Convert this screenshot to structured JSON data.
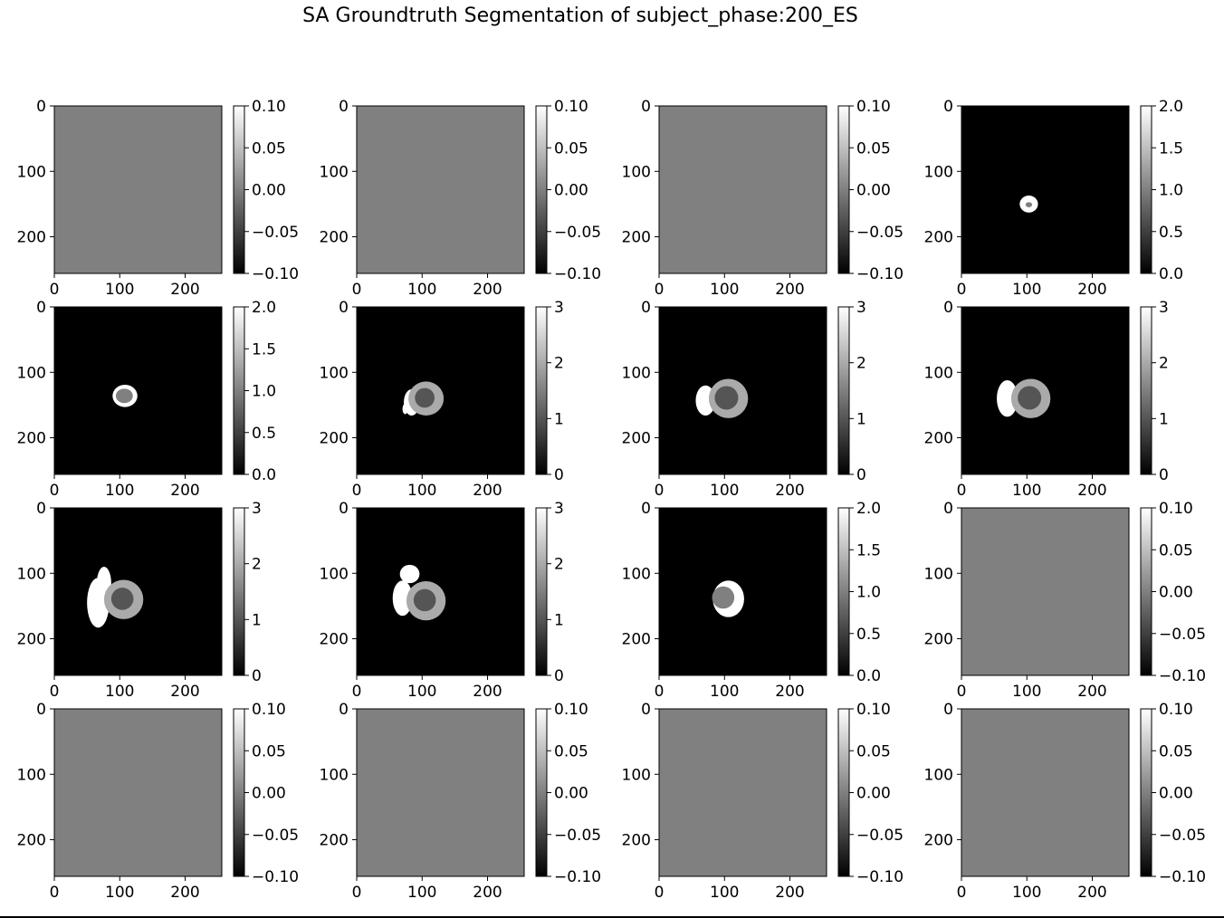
{
  "title": "SA Groundtruth Segmentation of subject_phase:200_ES",
  "colors": {
    "background": "#ffffff",
    "colormap": "gray",
    "axis": "#000000"
  },
  "chart_data": [
    {
      "type": "heatmap",
      "x_ticks": [
        0,
        100,
        200
      ],
      "y_ticks": [
        0,
        100,
        200
      ],
      "xlim": [
        0,
        256
      ],
      "ylim": [
        256,
        0
      ],
      "colorbar": {
        "vmin": -0.1,
        "vmax": 0.1,
        "ticks": [
          "0.10",
          "0.05",
          "0.00",
          "−0.05",
          "−0.10"
        ]
      },
      "value": 0,
      "regions": []
    },
    {
      "type": "heatmap",
      "x_ticks": [
        0,
        100,
        200
      ],
      "y_ticks": [
        0,
        100,
        200
      ],
      "xlim": [
        0,
        256
      ],
      "ylim": [
        256,
        0
      ],
      "colorbar": {
        "vmin": -0.1,
        "vmax": 0.1,
        "ticks": [
          "0.10",
          "0.05",
          "0.00",
          "−0.05",
          "−0.10"
        ]
      },
      "value": 0,
      "regions": []
    },
    {
      "type": "heatmap",
      "x_ticks": [
        0,
        100,
        200
      ],
      "y_ticks": [
        0,
        100,
        200
      ],
      "xlim": [
        0,
        256
      ],
      "ylim": [
        256,
        0
      ],
      "colorbar": {
        "vmin": -0.1,
        "vmax": 0.1,
        "ticks": [
          "0.10",
          "0.05",
          "0.00",
          "−0.05",
          "−0.10"
        ]
      },
      "value": 0,
      "regions": []
    },
    {
      "type": "heatmap",
      "x_ticks": [
        0,
        100,
        200
      ],
      "y_ticks": [
        0,
        100,
        200
      ],
      "xlim": [
        0,
        256
      ],
      "ylim": [
        256,
        0
      ],
      "colorbar": {
        "vmin": 0,
        "vmax": 2,
        "ticks": [
          "2.0",
          "1.5",
          "1.0",
          "0.5",
          "0.0"
        ]
      },
      "value": 0,
      "regions": [
        {
          "shape": "ellipse",
          "cx": 103,
          "cy": 150,
          "rx": 14,
          "ry": 13,
          "value": 2
        },
        {
          "shape": "ellipse",
          "cx": 103,
          "cy": 151,
          "rx": 5,
          "ry": 4,
          "value": 1
        }
      ]
    },
    {
      "type": "heatmap",
      "x_ticks": [
        0,
        100,
        200
      ],
      "y_ticks": [
        0,
        100,
        200
      ],
      "xlim": [
        0,
        256
      ],
      "ylim": [
        256,
        0
      ],
      "colorbar": {
        "vmin": 0,
        "vmax": 2,
        "ticks": [
          "2.0",
          "1.5",
          "1.0",
          "0.5",
          "0.0"
        ]
      },
      "value": 0,
      "regions": [
        {
          "shape": "ellipse",
          "cx": 108,
          "cy": 136,
          "rx": 19,
          "ry": 17,
          "value": 2
        },
        {
          "shape": "ellipse",
          "cx": 107,
          "cy": 136,
          "rx": 13,
          "ry": 11,
          "value": 1
        }
      ]
    },
    {
      "type": "heatmap",
      "x_ticks": [
        0,
        100,
        200
      ],
      "y_ticks": [
        0,
        100,
        200
      ],
      "xlim": [
        0,
        256
      ],
      "ylim": [
        256,
        0
      ],
      "colorbar": {
        "vmin": 0,
        "vmax": 3,
        "ticks": [
          "3",
          "2",
          "1",
          "0"
        ]
      },
      "value": 0,
      "regions": [
        {
          "shape": "ellipse",
          "cx": 84,
          "cy": 146,
          "rx": 12,
          "ry": 20,
          "value": 3
        },
        {
          "shape": "ellipse",
          "cx": 74,
          "cy": 156,
          "rx": 4,
          "ry": 8,
          "value": 3
        },
        {
          "shape": "ellipse",
          "cx": 106,
          "cy": 140,
          "rx": 27,
          "ry": 26,
          "value": 2
        },
        {
          "shape": "ellipse",
          "cx": 104,
          "cy": 139,
          "rx": 15,
          "ry": 15,
          "value": 1
        }
      ]
    },
    {
      "type": "heatmap",
      "x_ticks": [
        0,
        100,
        200
      ],
      "y_ticks": [
        0,
        100,
        200
      ],
      "xlim": [
        0,
        256
      ],
      "ylim": [
        256,
        0
      ],
      "colorbar": {
        "vmin": 0,
        "vmax": 3,
        "ticks": [
          "3",
          "2",
          "1",
          "0"
        ]
      },
      "value": 0,
      "regions": [
        {
          "shape": "ellipse",
          "cx": 71,
          "cy": 143,
          "rx": 15,
          "ry": 23,
          "value": 3
        },
        {
          "shape": "ellipse",
          "cx": 106,
          "cy": 140,
          "rx": 30,
          "ry": 30,
          "value": 2
        },
        {
          "shape": "ellipse",
          "cx": 103,
          "cy": 139,
          "rx": 18,
          "ry": 18,
          "value": 1
        }
      ]
    },
    {
      "type": "heatmap",
      "x_ticks": [
        0,
        100,
        200
      ],
      "y_ticks": [
        0,
        100,
        200
      ],
      "xlim": [
        0,
        256
      ],
      "ylim": [
        256,
        0
      ],
      "colorbar": {
        "vmin": 0,
        "vmax": 3,
        "ticks": [
          "3",
          "2",
          "1",
          "0"
        ]
      },
      "value": 0,
      "regions": [
        {
          "shape": "ellipse",
          "cx": 70,
          "cy": 140,
          "rx": 16,
          "ry": 28,
          "value": 3
        },
        {
          "shape": "ellipse",
          "cx": 106,
          "cy": 140,
          "rx": 30,
          "ry": 30,
          "value": 2
        },
        {
          "shape": "ellipse",
          "cx": 104,
          "cy": 139,
          "rx": 18,
          "ry": 18,
          "value": 1
        }
      ]
    },
    {
      "type": "heatmap",
      "x_ticks": [
        0,
        100,
        200
      ],
      "y_ticks": [
        0,
        100,
        200
      ],
      "xlim": [
        0,
        256
      ],
      "ylim": [
        256,
        0
      ],
      "colorbar": {
        "vmin": 0,
        "vmax": 3,
        "ticks": [
          "3",
          "2",
          "1",
          "0"
        ]
      },
      "value": 0,
      "regions": [
        {
          "shape": "ellipse",
          "cx": 76,
          "cy": 115,
          "rx": 11,
          "ry": 25,
          "value": 3
        },
        {
          "shape": "ellipse",
          "cx": 67,
          "cy": 145,
          "rx": 17,
          "ry": 38,
          "value": 3
        },
        {
          "shape": "ellipse",
          "cx": 106,
          "cy": 140,
          "rx": 30,
          "ry": 30,
          "value": 2
        },
        {
          "shape": "ellipse",
          "cx": 104,
          "cy": 139,
          "rx": 17,
          "ry": 17,
          "value": 1
        }
      ]
    },
    {
      "type": "heatmap",
      "x_ticks": [
        0,
        100,
        200
      ],
      "y_ticks": [
        0,
        100,
        200
      ],
      "xlim": [
        0,
        256
      ],
      "ylim": [
        256,
        0
      ],
      "colorbar": {
        "vmin": 0,
        "vmax": 3,
        "ticks": [
          "3",
          "2",
          "1",
          "0"
        ]
      },
      "value": 0,
      "regions": [
        {
          "shape": "ellipse",
          "cx": 81,
          "cy": 101,
          "rx": 15,
          "ry": 14,
          "value": 3
        },
        {
          "shape": "ellipse",
          "cx": 70,
          "cy": 138,
          "rx": 15,
          "ry": 27,
          "value": 3
        },
        {
          "shape": "ellipse",
          "cx": 106,
          "cy": 142,
          "rx": 30,
          "ry": 30,
          "value": 2
        },
        {
          "shape": "ellipse",
          "cx": 104,
          "cy": 141,
          "rx": 17,
          "ry": 17,
          "value": 1
        }
      ]
    },
    {
      "type": "heatmap",
      "x_ticks": [
        0,
        100,
        200
      ],
      "y_ticks": [
        0,
        100,
        200
      ],
      "xlim": [
        0,
        256
      ],
      "ylim": [
        256,
        0
      ],
      "colorbar": {
        "vmin": 0,
        "vmax": 2,
        "ticks": [
          "2.0",
          "1.5",
          "1.0",
          "0.5",
          "0.0"
        ]
      },
      "value": 0,
      "regions": [
        {
          "shape": "ellipse",
          "cx": 106,
          "cy": 139,
          "rx": 24,
          "ry": 28,
          "value": 2
        },
        {
          "shape": "ellipse",
          "cx": 98,
          "cy": 137,
          "rx": 17,
          "ry": 17,
          "value": 1
        }
      ]
    },
    {
      "type": "heatmap",
      "x_ticks": [
        0,
        100,
        200
      ],
      "y_ticks": [
        0,
        100,
        200
      ],
      "xlim": [
        0,
        256
      ],
      "ylim": [
        256,
        0
      ],
      "colorbar": {
        "vmin": -0.1,
        "vmax": 0.1,
        "ticks": [
          "0.10",
          "0.05",
          "0.00",
          "−0.05",
          "−0.10"
        ]
      },
      "value": 0,
      "regions": []
    },
    {
      "type": "heatmap",
      "x_ticks": [
        0,
        100,
        200
      ],
      "y_ticks": [
        0,
        100,
        200
      ],
      "xlim": [
        0,
        256
      ],
      "ylim": [
        256,
        0
      ],
      "colorbar": {
        "vmin": -0.1,
        "vmax": 0.1,
        "ticks": [
          "0.10",
          "0.05",
          "0.00",
          "−0.05",
          "−0.10"
        ]
      },
      "value": 0,
      "regions": []
    },
    {
      "type": "heatmap",
      "x_ticks": [
        0,
        100,
        200
      ],
      "y_ticks": [
        0,
        100,
        200
      ],
      "xlim": [
        0,
        256
      ],
      "ylim": [
        256,
        0
      ],
      "colorbar": {
        "vmin": -0.1,
        "vmax": 0.1,
        "ticks": [
          "0.10",
          "0.05",
          "0.00",
          "−0.05",
          "−0.10"
        ]
      },
      "value": 0,
      "regions": []
    },
    {
      "type": "heatmap",
      "x_ticks": [
        0,
        100,
        200
      ],
      "y_ticks": [
        0,
        100,
        200
      ],
      "xlim": [
        0,
        256
      ],
      "ylim": [
        256,
        0
      ],
      "colorbar": {
        "vmin": -0.1,
        "vmax": 0.1,
        "ticks": [
          "0.10",
          "0.05",
          "0.00",
          "−0.05",
          "−0.10"
        ]
      },
      "value": 0,
      "regions": []
    },
    {
      "type": "heatmap",
      "x_ticks": [
        0,
        100,
        200
      ],
      "y_ticks": [
        0,
        100,
        200
      ],
      "xlim": [
        0,
        256
      ],
      "ylim": [
        256,
        0
      ],
      "colorbar": {
        "vmin": -0.1,
        "vmax": 0.1,
        "ticks": [
          "0.10",
          "0.05",
          "0.00",
          "−0.05",
          "−0.10"
        ]
      },
      "value": 0,
      "regions": []
    }
  ]
}
